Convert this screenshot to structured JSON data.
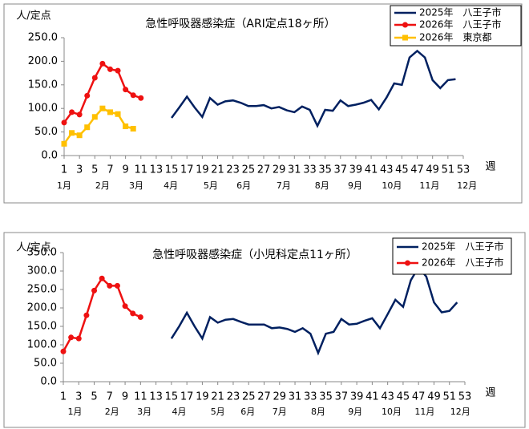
{
  "chart_data": [
    {
      "type": "line",
      "title": "急性呼吸器感染症（ARI定点18ヶ所）",
      "y_label": "人/定点",
      "x_label": "週",
      "xlim": [
        1,
        53
      ],
      "xticks": [
        1,
        3,
        5,
        7,
        9,
        11,
        13,
        15,
        17,
        19,
        21,
        23,
        25,
        27,
        29,
        31,
        33,
        35,
        37,
        39,
        41,
        43,
        45,
        47,
        49,
        51,
        53
      ],
      "month_ticks": [
        {
          "value": 1,
          "label": "1月"
        },
        {
          "value": 6,
          "label": "2月"
        },
        {
          "value": 10.4,
          "label": "3月"
        },
        {
          "value": 14.9,
          "label": "4月"
        },
        {
          "value": 20.1,
          "label": "5月"
        },
        {
          "value": 24.4,
          "label": "6月"
        },
        {
          "value": 29.6,
          "label": "7月"
        },
        {
          "value": 34.6,
          "label": "8月"
        },
        {
          "value": 38.9,
          "label": "9月"
        },
        {
          "value": 43.7,
          "label": "10月"
        },
        {
          "value": 48.6,
          "label": "11月"
        },
        {
          "value": 53.5,
          "label": "12月"
        }
      ],
      "ylim": [
        0,
        250
      ],
      "yticks": [
        {
          "value": 0,
          "label": "0.0"
        },
        {
          "value": 50,
          "label": "50.0"
        },
        {
          "value": 100,
          "label": "100.0"
        },
        {
          "value": 150,
          "label": "150.0"
        },
        {
          "value": 200,
          "label": "200.0"
        },
        {
          "value": 250,
          "label": "250.0"
        }
      ],
      "series": [
        {
          "name": "2025年　八王子市",
          "color": "#002060",
          "marker": "none",
          "x": [
            15,
            16,
            17,
            18,
            19,
            20,
            21,
            22,
            23,
            24,
            25,
            26,
            27,
            28,
            29,
            30,
            31,
            32,
            33,
            34,
            35,
            36,
            37,
            38,
            39,
            40,
            41,
            42,
            43,
            44,
            45,
            46,
            47,
            48,
            49,
            50,
            51,
            52
          ],
          "values": [
            80,
            102,
            125,
            102,
            82,
            122,
            108,
            115,
            117,
            112,
            105,
            105,
            107,
            100,
            103,
            96,
            92,
            104,
            97,
            63,
            97,
            95,
            117,
            105,
            108,
            112,
            118,
            98,
            123,
            153,
            150,
            208,
            222,
            208,
            160,
            143,
            160,
            162
          ]
        },
        {
          "name": "2026年　八王子市",
          "color": "#ee1111",
          "marker": "circle",
          "x": [
            1,
            2,
            3,
            4,
            5,
            6,
            7,
            8,
            9,
            10,
            11
          ],
          "values": [
            70,
            92,
            87,
            127,
            165,
            195,
            183,
            180,
            140,
            128,
            122
          ]
        },
        {
          "name": "2026年　東京都",
          "color": "#ffc000",
          "marker": "square",
          "x": [
            1,
            2,
            3,
            4,
            5,
            6,
            7,
            8,
            9,
            10
          ],
          "values": [
            25,
            48,
            43,
            60,
            82,
            100,
            92,
            88,
            62,
            57
          ]
        }
      ]
    },
    {
      "type": "line",
      "title": "急性呼吸器感染症（小児科定点11ヶ所）",
      "y_label": "人/定点",
      "x_label": "週",
      "xlim": [
        1,
        53
      ],
      "xticks": [
        1,
        3,
        5,
        7,
        9,
        11,
        13,
        15,
        17,
        19,
        21,
        23,
        25,
        27,
        29,
        31,
        33,
        35,
        37,
        39,
        41,
        43,
        45,
        47,
        49,
        51,
        53
      ],
      "month_ticks": [
        {
          "value": 2.5,
          "label": "1月"
        },
        {
          "value": 7.3,
          "label": "2月"
        },
        {
          "value": 11.5,
          "label": "3月"
        },
        {
          "value": 16,
          "label": "4月"
        },
        {
          "value": 21,
          "label": "5月"
        },
        {
          "value": 24.9,
          "label": "6月"
        },
        {
          "value": 29,
          "label": "7月"
        },
        {
          "value": 34,
          "label": "8月"
        },
        {
          "value": 38.8,
          "label": "9月"
        },
        {
          "value": 43.5,
          "label": "10月"
        },
        {
          "value": 47.8,
          "label": "11月"
        },
        {
          "value": 52.4,
          "label": "12月"
        }
      ],
      "ylim": [
        0,
        350
      ],
      "yticks": [
        {
          "value": 0,
          "label": "0.0"
        },
        {
          "value": 50,
          "label": "50.0"
        },
        {
          "value": 100,
          "label": "100.0"
        },
        {
          "value": 150,
          "label": "150.0"
        },
        {
          "value": 200,
          "label": "200.0"
        },
        {
          "value": 250,
          "label": "250.0"
        },
        {
          "value": 300,
          "label": "300.0"
        },
        {
          "value": 350,
          "label": "350.0"
        }
      ],
      "series": [
        {
          "name": "2025年　八王子市",
          "color": "#002060",
          "marker": "none",
          "x": [
            15,
            16,
            17,
            18,
            19,
            20,
            21,
            22,
            23,
            24,
            25,
            26,
            27,
            28,
            29,
            30,
            31,
            32,
            33,
            34,
            35,
            36,
            37,
            38,
            39,
            40,
            41,
            42,
            43,
            44,
            45,
            46,
            47,
            48,
            49,
            50,
            51,
            52
          ],
          "values": [
            117,
            150,
            187,
            150,
            117,
            175,
            160,
            168,
            170,
            162,
            155,
            155,
            155,
            145,
            147,
            143,
            135,
            145,
            130,
            78,
            130,
            135,
            170,
            155,
            157,
            165,
            172,
            145,
            183,
            222,
            203,
            275,
            310,
            285,
            215,
            188,
            192,
            215
          ]
        },
        {
          "name": "2026年　八王子市",
          "color": "#ee1111",
          "marker": "circle",
          "x": [
            1,
            2,
            3,
            4,
            5,
            6,
            7,
            8,
            9,
            10,
            11
          ],
          "values": [
            82,
            120,
            117,
            180,
            247,
            280,
            260,
            260,
            205,
            185,
            175
          ]
        }
      ]
    }
  ]
}
